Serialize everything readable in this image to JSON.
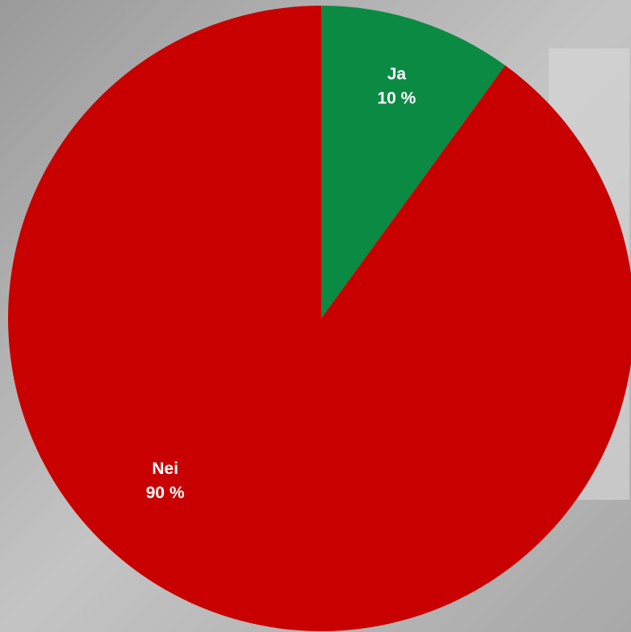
{
  "chart_data": {
    "type": "pie",
    "categories": [
      "Ja",
      "Nei"
    ],
    "values": [
      10,
      90
    ],
    "value_labels": [
      "10 %",
      "90 %"
    ],
    "colors": [
      "#0b8a43",
      "#c90000"
    ]
  }
}
